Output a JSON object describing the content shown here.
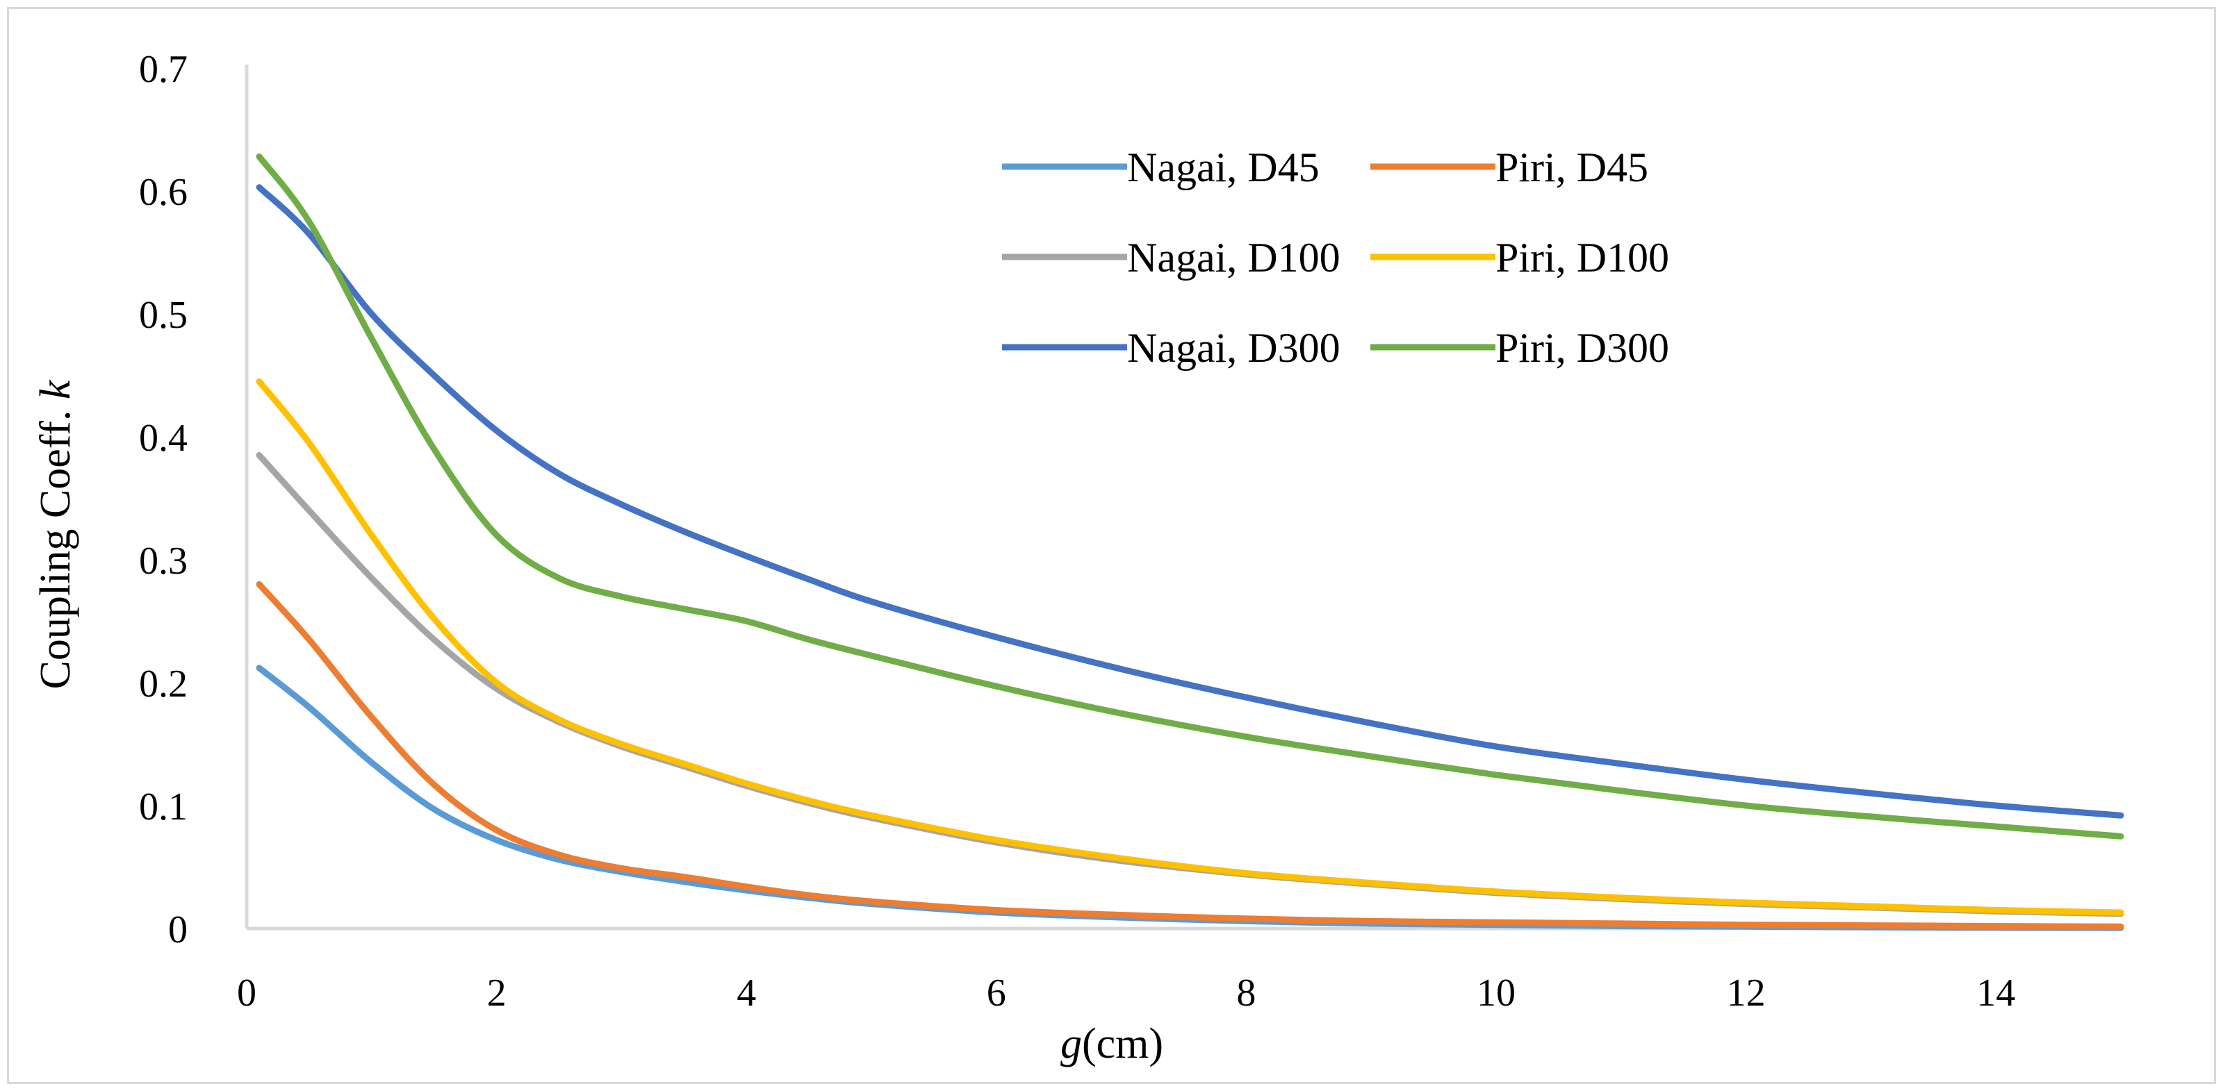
{
  "chart_data": {
    "type": "line",
    "title": "",
    "xlabel": {
      "italic": "g",
      "rest": "(cm)"
    },
    "ylabel": {
      "rest": "Coupling Coeff. ",
      "italic": "k"
    },
    "xlim": [
      0,
      15
    ],
    "ylim": [
      0,
      0.7
    ],
    "xticks": [
      0,
      2,
      4,
      6,
      8,
      10,
      12,
      14
    ],
    "xtick_labels": [
      "0",
      "2",
      "4",
      "6",
      "8",
      "10",
      "12",
      "14"
    ],
    "yticks": [
      0,
      0.1,
      0.2,
      0.3,
      0.4,
      0.5,
      0.6,
      0.7
    ],
    "ytick_labels": [
      "0",
      "0.1",
      "0.2",
      "0.3",
      "0.4",
      "0.5",
      "0.6",
      "0.7"
    ],
    "grid": false,
    "legend_position": "top-right",
    "x": [
      0.1,
      0.5,
      1,
      1.5,
      2,
      2.5,
      3,
      3.5,
      4,
      4.5,
      5,
      6,
      7,
      8,
      9,
      10,
      11,
      12,
      13,
      14,
      15
    ],
    "series": [
      {
        "name": "Nagai, D45",
        "color": "#5b9bd5",
        "values": [
          0.212,
          0.18,
          0.135,
          0.097,
          0.072,
          0.056,
          0.046,
          0.038,
          0.031,
          0.025,
          0.02,
          0.013,
          0.009,
          0.006,
          0.004,
          0.003,
          0.002,
          0.0015,
          0.001,
          0.0007,
          0.0005
        ]
      },
      {
        "name": "Piri, D45",
        "color": "#ed7d31",
        "values": [
          0.28,
          0.235,
          0.172,
          0.117,
          0.08,
          0.06,
          0.049,
          0.042,
          0.034,
          0.027,
          0.022,
          0.015,
          0.011,
          0.008,
          0.006,
          0.005,
          0.004,
          0.003,
          0.0025,
          0.002,
          0.0015
        ]
      },
      {
        "name": "Nagai, D100",
        "color": "#a5a5a5",
        "values": [
          0.385,
          0.34,
          0.285,
          0.235,
          0.195,
          0.168,
          0.148,
          0.132,
          0.116,
          0.102,
          0.09,
          0.07,
          0.055,
          0.044,
          0.036,
          0.029,
          0.024,
          0.02,
          0.017,
          0.014,
          0.012
        ]
      },
      {
        "name": "Piri, D100",
        "color": "#ffc000",
        "values": [
          0.445,
          0.395,
          0.32,
          0.252,
          0.2,
          0.17,
          0.15,
          0.134,
          0.118,
          0.104,
          0.092,
          0.072,
          0.057,
          0.045,
          0.037,
          0.03,
          0.025,
          0.021,
          0.018,
          0.015,
          0.013
        ]
      },
      {
        "name": "Nagai, D300",
        "color": "#4472c4",
        "values": [
          0.603,
          0.565,
          0.5,
          0.45,
          0.405,
          0.37,
          0.345,
          0.323,
          0.303,
          0.284,
          0.266,
          0.237,
          0.211,
          0.188,
          0.167,
          0.148,
          0.134,
          0.121,
          0.11,
          0.1,
          0.092
        ]
      },
      {
        "name": "Piri, D300",
        "color": "#70ad47",
        "values": [
          0.628,
          0.575,
          0.48,
          0.39,
          0.32,
          0.285,
          0.27,
          0.26,
          0.25,
          0.235,
          0.222,
          0.197,
          0.175,
          0.156,
          0.14,
          0.125,
          0.112,
          0.1,
          0.091,
          0.083,
          0.075
        ]
      }
    ]
  }
}
